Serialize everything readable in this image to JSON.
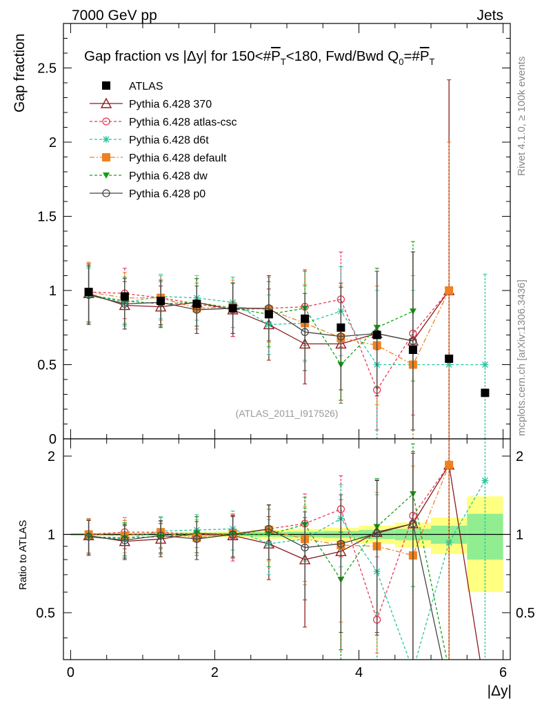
{
  "header": {
    "energy_label": "7000 GeV pp",
    "process_label": "Jets",
    "side_label_top": "Rivet 4.1.0, ≥ 100k events",
    "side_label_bottom": "mcplots.cern.ch [arXiv:1306.3436]"
  },
  "chart_data": [
    {
      "type": "line",
      "title": "Gap fraction vs |Δy| for 150<#P̅T<180, Fwd/Bwd Q0=#P̅T",
      "title_parts": {
        "a": "Gap fraction vs |",
        "b": "Δ",
        "c": "y| for 150<#",
        "d": "P",
        "e": "T",
        "f": "<180, Fwd/Bwd Q",
        "g": "0",
        "h": "=#",
        "i": "P",
        "j": "T"
      },
      "ylabel": "Gap fraction",
      "xlabel": "|Δy|",
      "xlim": [
        -0.1,
        6.1
      ],
      "ylim": [
        0,
        2.8
      ],
      "yticks": [
        0,
        0.5,
        1,
        1.5,
        2,
        2.5
      ],
      "ytick_labels": [
        "0",
        "0.5",
        "1",
        "1.5",
        "2",
        "2.5"
      ],
      "watermark": "(ATLAS_2011_I917526)",
      "x": [
        0.25,
        0.75,
        1.25,
        1.75,
        2.25,
        2.75,
        3.25,
        3.75,
        4.25,
        4.75,
        5.25,
        5.75
      ],
      "data": {
        "name": "ATLAS",
        "values": [
          0.99,
          0.96,
          0.93,
          0.91,
          0.88,
          0.84,
          0.81,
          0.75,
          0.7,
          0.6,
          0.54,
          0.31
        ],
        "errors": [
          0.01,
          0.01,
          0.01,
          0.01,
          0.01,
          0.01,
          0.01,
          0.01,
          0.02,
          0.02,
          0.02,
          0.02
        ]
      },
      "series": [
        {
          "name": "Pythia 6.428 370",
          "color": "#8b1a1a",
          "marker": "triangle-open",
          "dash": "solid",
          "values": [
            0.98,
            0.9,
            0.89,
            0.92,
            0.87,
            0.77,
            0.64,
            0.64,
            0.71,
            0.66,
            1.0,
            null
          ],
          "errors": [
            0.2,
            0.16,
            0.14,
            0.16,
            0.18,
            0.24,
            0.27,
            0.38,
            0.42,
            0.6,
            1.42,
            null
          ]
        },
        {
          "name": "Pythia 6.428 atlas-csc",
          "color": "#ee3355",
          "marker": "circle-open",
          "dash": "4,3",
          "values": [
            0.99,
            0.98,
            0.95,
            0.91,
            0.87,
            0.88,
            0.89,
            0.94,
            0.33,
            0.71,
            1.0,
            null
          ],
          "errors": [
            0.2,
            0.17,
            0.15,
            0.17,
            0.18,
            0.22,
            0.25,
            0.32,
            0.27,
            0.55,
            1.0,
            null
          ]
        },
        {
          "name": "Pythia 6.428 d6t",
          "color": "#22c4a0",
          "marker": "star",
          "dash": "4,3",
          "values": [
            0.97,
            0.92,
            0.96,
            0.95,
            0.92,
            0.77,
            0.78,
            0.86,
            0.5,
            0.5,
            0.5,
            0.5
          ],
          "errors": [
            0.18,
            0.16,
            0.15,
            0.15,
            0.17,
            0.2,
            0.25,
            0.3,
            0.5,
            0.5,
            0.5,
            0.61
          ]
        },
        {
          "name": "Pythia 6.428 default",
          "color": "#f08020",
          "marker": "square",
          "dash": "7,3,2,3",
          "values": [
            0.99,
            0.95,
            0.95,
            0.88,
            0.89,
            0.87,
            0.78,
            0.68,
            0.63,
            0.5,
            1.0,
            null
          ],
          "errors": [
            0.2,
            0.17,
            0.15,
            0.17,
            0.18,
            0.22,
            0.26,
            0.35,
            0.4,
            0.6,
            1.0,
            null
          ]
        },
        {
          "name": "Pythia 6.428 dw",
          "color": "#10a010",
          "marker": "triangle-down",
          "dash": "4,3",
          "values": [
            0.97,
            0.93,
            0.91,
            0.92,
            0.88,
            0.84,
            0.88,
            0.5,
            0.75,
            0.86,
            null,
            null
          ],
          "errors": [
            0.19,
            0.16,
            0.15,
            0.16,
            0.17,
            0.22,
            0.25,
            0.26,
            0.4,
            0.47,
            null,
            null
          ]
        },
        {
          "name": "Pythia 6.428 p0",
          "color": "#444444",
          "marker": "circle-open",
          "dash": "solid",
          "values": [
            0.97,
            0.91,
            0.92,
            0.87,
            0.88,
            0.88,
            0.72,
            0.69,
            0.71,
            0.66,
            null,
            null
          ],
          "errors": [
            0.2,
            0.17,
            0.15,
            0.16,
            0.17,
            0.22,
            0.26,
            0.36,
            0.42,
            0.6,
            null,
            null
          ]
        }
      ]
    },
    {
      "type": "line",
      "title": "",
      "ylabel": "Ratio to ATLAS",
      "xlabel": "|Δy|",
      "xlim": [
        -0.1,
        6.1
      ],
      "ylim": [
        0.33,
        2.33
      ],
      "yticks": [
        0.5,
        1,
        2
      ],
      "ytick_labels": [
        "0.5",
        "1",
        "2"
      ],
      "xticks": [
        0,
        2,
        4,
        6
      ],
      "xtick_labels": [
        "0",
        "2",
        "4",
        "6"
      ],
      "x": [
        0.25,
        0.75,
        1.25,
        1.75,
        2.25,
        2.75,
        3.25,
        3.75,
        4.25,
        4.75,
        5.25,
        5.75
      ],
      "bands": {
        "x_edges": [
          0,
          0.5,
          1,
          1.5,
          2,
          2.5,
          3,
          3.5,
          4,
          4.5,
          5,
          5.5,
          6
        ],
        "inner": [
          0.01,
          0.01,
          0.01,
          0.015,
          0.015,
          0.02,
          0.025,
          0.03,
          0.04,
          0.05,
          0.08,
          0.2
        ],
        "outer": [
          0.01,
          0.015,
          0.015,
          0.02,
          0.025,
          0.04,
          0.05,
          0.06,
          0.08,
          0.11,
          0.16,
          0.4
        ],
        "inner_color": "#90ee90",
        "outer_color": "#ffff80"
      },
      "series": [
        {
          "name": "Pythia 6.428 370",
          "color": "#8b1a1a",
          "marker": "triangle-open",
          "dash": "solid",
          "values": [
            0.99,
            0.94,
            0.96,
            1.01,
            0.99,
            0.92,
            0.8,
            0.86,
            1.02,
            1.1,
            1.85,
            0.25
          ],
          "errors": [
            0.15,
            0.14,
            0.14,
            0.16,
            0.18,
            0.25,
            0.36,
            0.5,
            0.6,
            0.95,
            2.5,
            null
          ]
        },
        {
          "name": "Pythia 6.428 atlas-csc",
          "color": "#ee3355",
          "marker": "circle-open",
          "dash": "4,3",
          "values": [
            1.0,
            1.02,
            1.02,
            1.0,
            0.99,
            1.05,
            1.1,
            1.25,
            0.47,
            1.18,
            1.85,
            null
          ],
          "errors": [
            0.15,
            0.14,
            0.14,
            0.17,
            0.2,
            0.25,
            0.33,
            0.43,
            0.35,
            0.9,
            1.8,
            null
          ]
        },
        {
          "name": "Pythia 6.428 d6t",
          "color": "#22c4a0",
          "marker": "star",
          "dash": "4,3",
          "values": [
            0.98,
            0.96,
            1.03,
            1.04,
            1.05,
            0.92,
            0.96,
            1.15,
            0.72,
            0.3,
            0.93,
            1.61
          ],
          "errors": [
            0.15,
            0.14,
            0.14,
            0.15,
            0.18,
            0.22,
            0.3,
            0.4,
            0.7,
            0.8,
            0.9,
            1.9
          ]
        },
        {
          "name": "Pythia 6.428 default",
          "color": "#f08020",
          "marker": "square",
          "dash": "7,3,2,3",
          "values": [
            1.0,
            0.99,
            1.02,
            0.97,
            1.01,
            1.04,
            0.96,
            0.91,
            0.9,
            0.83,
            1.85,
            null
          ],
          "errors": [
            0.15,
            0.14,
            0.14,
            0.17,
            0.19,
            0.25,
            0.32,
            0.45,
            0.55,
            1.0,
            1.8,
            null
          ]
        },
        {
          "name": "Pythia 6.428 dw",
          "color": "#10a010",
          "marker": "triangle-down",
          "dash": "4,3",
          "values": [
            0.98,
            0.97,
            0.98,
            1.01,
            1.0,
            1.0,
            1.09,
            0.67,
            1.07,
            1.43,
            0.3,
            null
          ],
          "errors": [
            0.15,
            0.14,
            0.14,
            0.16,
            0.18,
            0.25,
            0.3,
            0.35,
            0.57,
            0.8,
            null,
            null
          ]
        },
        {
          "name": "Pythia 6.428 p0",
          "color": "#444444",
          "marker": "circle-open",
          "dash": "solid",
          "values": [
            0.98,
            0.95,
            0.99,
            0.96,
            1.0,
            1.05,
            0.89,
            0.92,
            1.01,
            1.1,
            0.25,
            null
          ],
          "errors": [
            0.15,
            0.14,
            0.14,
            0.16,
            0.18,
            0.25,
            0.33,
            0.5,
            0.6,
            0.95,
            null,
            null
          ]
        }
      ]
    }
  ]
}
